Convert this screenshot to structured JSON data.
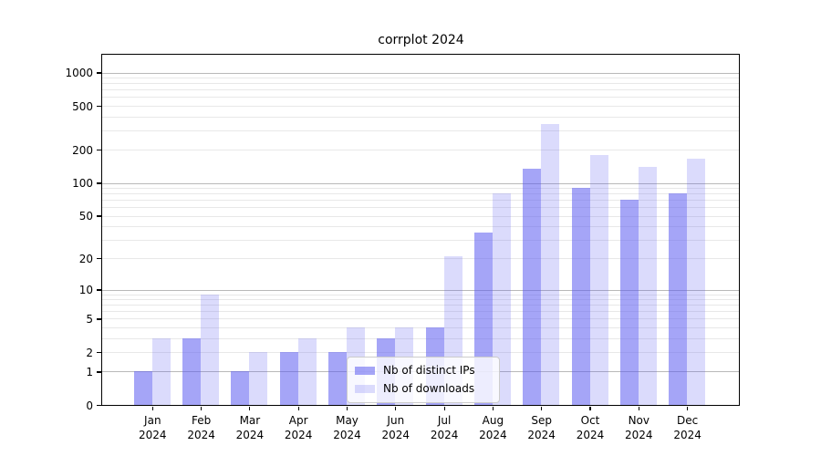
{
  "chart_data": {
    "type": "bar",
    "title": "corrplot 2024",
    "categories": [
      "Jan",
      "Feb",
      "Mar",
      "Apr",
      "May",
      "Jun",
      "Jul",
      "Aug",
      "Sep",
      "Oct",
      "Nov",
      "Dec"
    ],
    "x_tick_second_line": "2024",
    "series": [
      {
        "name": "Nb of distinct IPs",
        "color": "rgba(91,91,240,0.55)",
        "values": [
          1,
          3,
          1,
          2,
          2,
          3,
          4,
          35,
          135,
          90,
          70,
          80
        ]
      },
      {
        "name": "Nb of downloads",
        "color": "rgba(91,91,240,0.22)",
        "values": [
          3,
          9,
          2,
          3,
          4,
          4,
          21,
          80,
          340,
          180,
          140,
          165
        ]
      }
    ],
    "y_scale": "log1p",
    "y_ticks": [
      0,
      1,
      2,
      5,
      10,
      20,
      50,
      100,
      200,
      500,
      1000
    ],
    "y_major_gridlines": [
      1,
      10,
      100,
      1000
    ],
    "ylim": [
      0,
      1450
    ],
    "grid": true,
    "legend_position": "inside lower center"
  },
  "colors": {
    "bar_dark_hex": "#a5a5f1",
    "bar_light_hex": "#dcdcfa",
    "grid_major": "#b9b9b9",
    "grid_minor": "#e8e8e8",
    "spine": "#000000",
    "legend_border": "#cccccc",
    "text": "#000000"
  }
}
